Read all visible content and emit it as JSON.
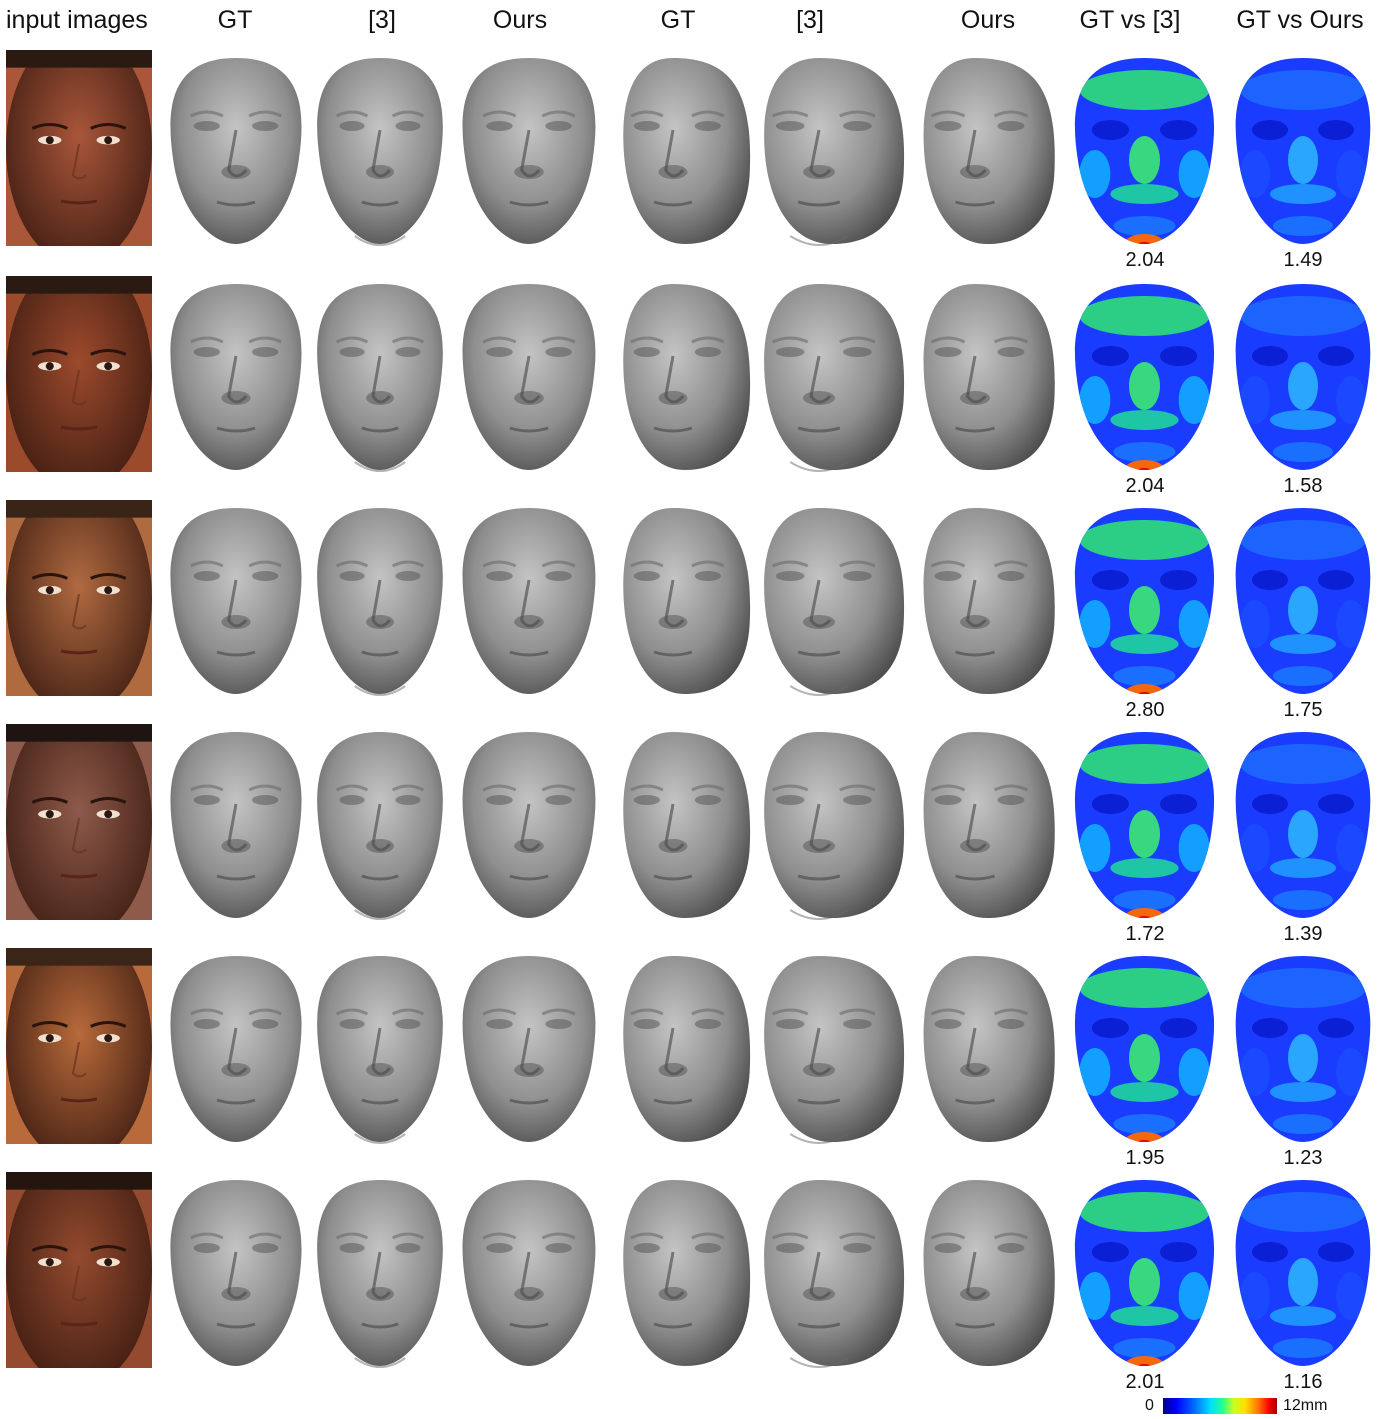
{
  "headers": {
    "input": "input images",
    "gt_frontal": "GT",
    "ref3_frontal": "[3]",
    "ours_frontal": "Ours",
    "gt_side": "GT",
    "ref3_side": "[3]",
    "ours_side": "Ours",
    "gt_vs_ref3": "GT vs [3]",
    "gt_vs_ours": "GT vs Ours"
  },
  "rows": [
    {
      "skin": "#a9563a",
      "hair": "#2a1a12",
      "score_ref3": "2.04",
      "score_ours": "1.49"
    },
    {
      "skin": "#9c4a2c",
      "hair": "#2a1a12",
      "score_ref3": "2.04",
      "score_ours": "1.58"
    },
    {
      "skin": "#b06a40",
      "hair": "#3a2418",
      "score_ref3": "2.80",
      "score_ours": "1.75"
    },
    {
      "skin": "#8e5a4a",
      "hair": "#1e1412",
      "score_ref3": "1.72",
      "score_ours": "1.39"
    },
    {
      "skin": "#b86a3a",
      "hair": "#3b2518",
      "score_ref3": "1.95",
      "score_ours": "1.23"
    },
    {
      "skin": "#934a2e",
      "hair": "#24160f",
      "score_ref3": "2.01",
      "score_ours": "1.16"
    }
  ],
  "colorbar": {
    "min_label": "0",
    "max_label": "12mm"
  }
}
